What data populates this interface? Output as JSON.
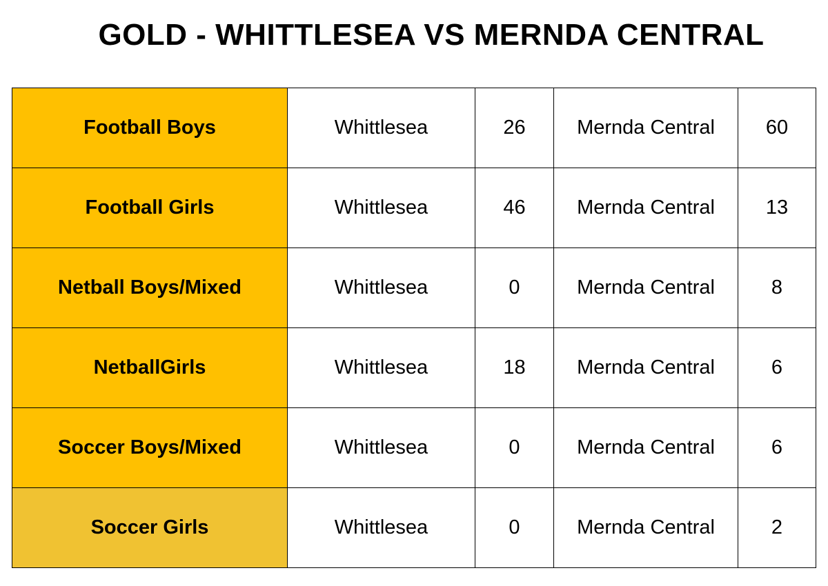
{
  "header": {
    "title": "GOLD - WHITTLESEA VS MERNDA CENTRAL"
  },
  "table": {
    "rows": [
      [
        "Football Boys",
        "Whittlesea",
        26,
        "Mernda Central",
        60
      ],
      [
        "Football Girls",
        "Whittlesea",
        46,
        "Mernda Central",
        13
      ],
      [
        "Netball Boys/Mixed",
        "Whittlesea",
        0,
        "Mernda Central",
        8
      ],
      [
        "NetballGirls",
        "Whittlesea",
        18,
        "Mernda Central",
        6
      ],
      [
        "Soccer Boys/Mixed",
        "Whittlesea",
        0,
        "Mernda Central",
        6
      ],
      [
        "Soccer Girls",
        "Whittlesea",
        0,
        "Mernda Central",
        2
      ]
    ]
  }
}
